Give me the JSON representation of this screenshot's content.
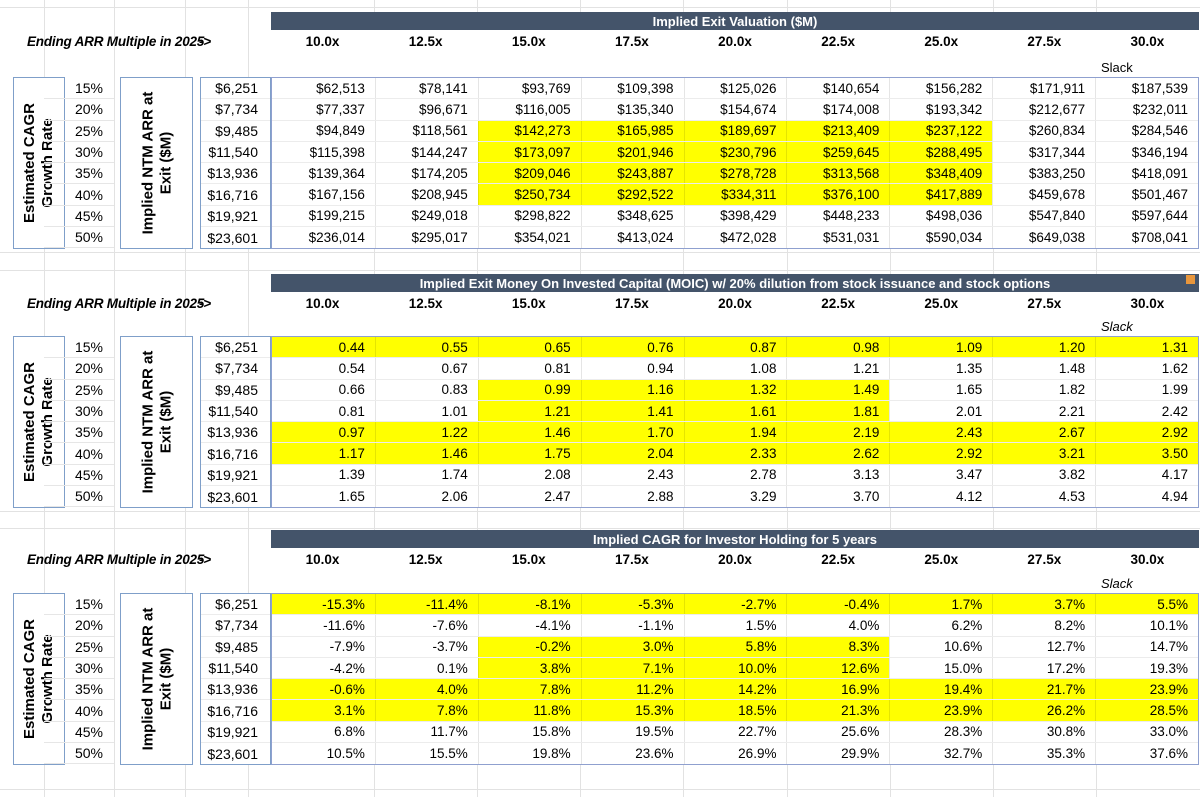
{
  "shared": {
    "ending_label": "Ending ARR Multiple in 2025",
    "arrow": "->",
    "slack_label": "Slack",
    "columns": [
      "10.0x",
      "12.5x",
      "15.0x",
      "17.5x",
      "20.0x",
      "22.5x",
      "25.0x",
      "27.5x",
      "30.0x"
    ],
    "growth_label_lines": [
      "Estimated CAGR",
      "Growth Rate"
    ],
    "arr_label_lines": [
      "Implied NTM ARR at",
      "Exit ($M)"
    ],
    "growth_rates": [
      "15%",
      "20%",
      "25%",
      "30%",
      "35%",
      "40%",
      "45%",
      "50%"
    ],
    "arr_values": [
      "$6,251",
      "$7,734",
      "$9,485",
      "$11,540",
      "$13,936",
      "$16,716",
      "$19,921",
      "$23,601"
    ]
  },
  "colors": {
    "header_bar": "#44546A",
    "highlight": "#FFFF00",
    "box_border": "#7f9fc9",
    "block_border": "#8fa0cf",
    "comment_marker": "#E8963C"
  },
  "tables": [
    {
      "id": "exit-valuation",
      "title": "Implied Exit Valuation ($M)",
      "slack_italic": false,
      "comment_marker": false,
      "rows": [
        {
          "values": [
            "$62,513",
            "$78,141",
            "$93,769",
            "$109,398",
            "$125,026",
            "$140,654",
            "$156,282",
            "$171,911",
            "$187,539"
          ],
          "highlight": []
        },
        {
          "values": [
            "$77,337",
            "$96,671",
            "$116,005",
            "$135,340",
            "$154,674",
            "$174,008",
            "$193,342",
            "$212,677",
            "$232,011"
          ],
          "highlight": []
        },
        {
          "values": [
            "$94,849",
            "$118,561",
            "$142,273",
            "$165,985",
            "$189,697",
            "$213,409",
            "$237,122",
            "$260,834",
            "$284,546"
          ],
          "highlight": [
            2,
            3,
            4,
            5,
            6
          ]
        },
        {
          "values": [
            "$115,398",
            "$144,247",
            "$173,097",
            "$201,946",
            "$230,796",
            "$259,645",
            "$288,495",
            "$317,344",
            "$346,194"
          ],
          "highlight": [
            2,
            3,
            4,
            5,
            6
          ]
        },
        {
          "values": [
            "$139,364",
            "$174,205",
            "$209,046",
            "$243,887",
            "$278,728",
            "$313,568",
            "$348,409",
            "$383,250",
            "$418,091"
          ],
          "highlight": [
            2,
            3,
            4,
            5,
            6
          ]
        },
        {
          "values": [
            "$167,156",
            "$208,945",
            "$250,734",
            "$292,522",
            "$334,311",
            "$376,100",
            "$417,889",
            "$459,678",
            "$501,467"
          ],
          "highlight": [
            2,
            3,
            4,
            5,
            6
          ]
        },
        {
          "values": [
            "$199,215",
            "$249,018",
            "$298,822",
            "$348,625",
            "$398,429",
            "$448,233",
            "$498,036",
            "$547,840",
            "$597,644"
          ],
          "highlight": []
        },
        {
          "values": [
            "$236,014",
            "$295,017",
            "$354,021",
            "$413,024",
            "$472,028",
            "$531,031",
            "$590,034",
            "$649,038",
            "$708,041"
          ],
          "highlight": []
        }
      ]
    },
    {
      "id": "moic",
      "title": "Implied Exit Money On Invested Capital (MOIC) w/ 20% dilution from stock issuance and stock options",
      "slack_italic": true,
      "comment_marker": true,
      "rows": [
        {
          "values": [
            "0.44",
            "0.55",
            "0.65",
            "0.76",
            "0.87",
            "0.98",
            "1.09",
            "1.20",
            "1.31"
          ],
          "highlight": [
            0,
            1,
            2,
            3,
            4,
            5,
            6,
            7,
            8
          ]
        },
        {
          "values": [
            "0.54",
            "0.67",
            "0.81",
            "0.94",
            "1.08",
            "1.21",
            "1.35",
            "1.48",
            "1.62"
          ],
          "highlight": []
        },
        {
          "values": [
            "0.66",
            "0.83",
            "0.99",
            "1.16",
            "1.32",
            "1.49",
            "1.65",
            "1.82",
            "1.99"
          ],
          "highlight": [
            2,
            3,
            4,
            5
          ]
        },
        {
          "values": [
            "0.81",
            "1.01",
            "1.21",
            "1.41",
            "1.61",
            "1.81",
            "2.01",
            "2.21",
            "2.42"
          ],
          "highlight": [
            2,
            3,
            4,
            5
          ]
        },
        {
          "values": [
            "0.97",
            "1.22",
            "1.46",
            "1.70",
            "1.94",
            "2.19",
            "2.43",
            "2.67",
            "2.92"
          ],
          "highlight": [
            0,
            1,
            2,
            3,
            4,
            5,
            6,
            7,
            8
          ]
        },
        {
          "values": [
            "1.17",
            "1.46",
            "1.75",
            "2.04",
            "2.33",
            "2.62",
            "2.92",
            "3.21",
            "3.50"
          ],
          "highlight": [
            0,
            1,
            2,
            3,
            4,
            5,
            6,
            7,
            8
          ]
        },
        {
          "values": [
            "1.39",
            "1.74",
            "2.08",
            "2.43",
            "2.78",
            "3.13",
            "3.47",
            "3.82",
            "4.17"
          ],
          "highlight": []
        },
        {
          "values": [
            "1.65",
            "2.06",
            "2.47",
            "2.88",
            "3.29",
            "3.70",
            "4.12",
            "4.53",
            "4.94"
          ],
          "highlight": []
        }
      ]
    },
    {
      "id": "investor-cagr",
      "title": "Implied CAGR for Investor Holding for 5 years",
      "slack_italic": true,
      "comment_marker": false,
      "rows": [
        {
          "values": [
            "-15.3%",
            "-11.4%",
            "-8.1%",
            "-5.3%",
            "-2.7%",
            "-0.4%",
            "1.7%",
            "3.7%",
            "5.5%"
          ],
          "highlight": [
            0,
            1,
            2,
            3,
            4,
            5,
            6,
            7,
            8
          ]
        },
        {
          "values": [
            "-11.6%",
            "-7.6%",
            "-4.1%",
            "-1.1%",
            "1.5%",
            "4.0%",
            "6.2%",
            "8.2%",
            "10.1%"
          ],
          "highlight": []
        },
        {
          "values": [
            "-7.9%",
            "-3.7%",
            "-0.2%",
            "3.0%",
            "5.8%",
            "8.3%",
            "10.6%",
            "12.7%",
            "14.7%"
          ],
          "highlight": [
            2,
            3,
            4,
            5
          ]
        },
        {
          "values": [
            "-4.2%",
            "0.1%",
            "3.8%",
            "7.1%",
            "10.0%",
            "12.6%",
            "15.0%",
            "17.2%",
            "19.3%"
          ],
          "highlight": [
            2,
            3,
            4,
            5
          ]
        },
        {
          "values": [
            "-0.6%",
            "4.0%",
            "7.8%",
            "11.2%",
            "14.2%",
            "16.9%",
            "19.4%",
            "21.7%",
            "23.9%"
          ],
          "highlight": [
            0,
            1,
            2,
            3,
            4,
            5,
            6,
            7,
            8
          ]
        },
        {
          "values": [
            "3.1%",
            "7.8%",
            "11.8%",
            "15.3%",
            "18.5%",
            "21.3%",
            "23.9%",
            "26.2%",
            "28.5%"
          ],
          "highlight": [
            0,
            1,
            2,
            3,
            4,
            5,
            6,
            7,
            8
          ]
        },
        {
          "values": [
            "6.8%",
            "11.7%",
            "15.8%",
            "19.5%",
            "22.7%",
            "25.6%",
            "28.3%",
            "30.8%",
            "33.0%"
          ],
          "highlight": []
        },
        {
          "values": [
            "10.5%",
            "15.5%",
            "19.8%",
            "23.6%",
            "26.9%",
            "29.9%",
            "32.7%",
            "35.3%",
            "37.6%"
          ],
          "highlight": []
        }
      ]
    }
  ]
}
